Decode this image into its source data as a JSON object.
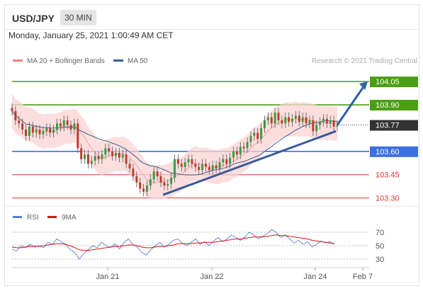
{
  "header": {
    "symbol": "USD/JPY",
    "timeframe": "30 MIN"
  },
  "datetime": "Monday, January 25, 2021 1:00:49 AM CET",
  "legend": {
    "ma20": {
      "label": "MA 20 + Bollinger Bands",
      "color": "#f08080"
    },
    "ma50": {
      "label": "MA 50",
      "color": "#3a5f95"
    }
  },
  "credit": "Research © 2021 Trading Central",
  "rsi_legend": {
    "rsi": {
      "label": "RSI",
      "color": "#5b7fd6"
    },
    "ma9": {
      "label": "9MA",
      "color": "#dd1111"
    }
  },
  "chart_data": [
    {
      "type": "candlestick",
      "symbol": "USD/JPY",
      "interval": "30 MIN",
      "x_ticks": [
        "Jan 21",
        "Jan 22",
        "Jan 24",
        "Feb 7"
      ],
      "levels": [
        {
          "value": 104.05,
          "label": "104.05",
          "color": "#4a9e12",
          "kind": "resistance"
        },
        {
          "value": 103.9,
          "label": "103.90",
          "color": "#4a9e12",
          "kind": "resistance"
        },
        {
          "value": 103.77,
          "label": "103.77",
          "color": "#333333",
          "kind": "last"
        },
        {
          "value": 103.6,
          "label": "103.60",
          "color": "#3c6fe0",
          "kind": "pivot"
        },
        {
          "value": 103.45,
          "label": "103.45",
          "color": "#e23232",
          "kind": "support"
        },
        {
          "value": 103.3,
          "label": "103.30",
          "color": "#e23232",
          "kind": "support"
        }
      ],
      "closes": [
        103.86,
        103.8,
        103.78,
        103.74,
        103.7,
        103.76,
        103.72,
        103.74,
        103.71,
        103.73,
        103.75,
        103.72,
        103.74,
        103.78,
        103.76,
        103.8,
        103.77,
        103.74,
        103.78,
        103.62,
        103.55,
        103.58,
        103.52,
        103.54,
        103.57,
        103.55,
        103.58,
        103.62,
        103.6,
        103.57,
        103.59,
        103.56,
        103.58,
        103.52,
        103.49,
        103.44,
        103.4,
        103.36,
        103.34,
        103.38,
        103.42,
        103.47,
        103.44,
        103.4,
        103.38,
        103.39,
        103.43,
        103.55,
        103.52,
        103.5,
        103.53,
        103.55,
        103.52,
        103.5,
        103.48,
        103.52,
        103.5,
        103.48,
        103.51,
        103.49,
        103.53,
        103.55,
        103.52,
        103.56,
        103.6,
        103.58,
        103.63,
        103.62,
        103.66,
        103.7,
        103.72,
        103.68,
        103.75,
        103.8,
        103.82,
        103.78,
        103.85,
        103.8,
        103.78,
        103.82,
        103.79,
        103.81,
        103.83,
        103.79,
        103.82,
        103.78,
        103.8,
        103.73,
        103.77,
        103.79,
        103.81,
        103.78,
        103.8,
        103.76,
        103.77
      ],
      "trendline": {
        "from": 103.32,
        "to": 103.73
      },
      "projection": {
        "from": 103.77,
        "to": 104.05
      },
      "ylim": [
        103.28,
        104.1
      ]
    },
    {
      "type": "line",
      "name": "RSI",
      "series": [
        {
          "name": "RSI",
          "color": "#5b7fd6",
          "values": [
            45,
            42,
            50,
            47,
            52,
            48,
            50,
            47,
            55,
            52,
            60,
            56,
            52,
            44,
            40,
            30,
            38,
            44,
            50,
            47,
            55,
            50,
            47,
            53,
            45,
            55,
            60,
            52,
            48,
            40,
            36,
            44,
            50,
            55,
            48,
            52,
            58,
            60,
            54,
            50,
            55,
            60,
            52,
            56,
            50,
            57,
            62,
            56,
            60,
            66,
            62,
            58,
            63,
            70,
            66,
            60,
            64,
            68,
            74,
            70,
            62,
            66,
            60,
            54,
            58,
            52,
            56,
            48,
            52,
            57,
            54,
            56,
            52
          ]
        },
        {
          "name": "9MA",
          "color": "#dd1111",
          "values": [
            48,
            47,
            47,
            48,
            49,
            49,
            49,
            50,
            51,
            52,
            53,
            53,
            52,
            50,
            47,
            44,
            43,
            43,
            44,
            45,
            46,
            47,
            48,
            49,
            49,
            50,
            51,
            51,
            50,
            48,
            47,
            47,
            48,
            49,
            49,
            50,
            51,
            53,
            53,
            53,
            53,
            54,
            54,
            55,
            55,
            55,
            56,
            57,
            58,
            59,
            60,
            60,
            61,
            62,
            63,
            63,
            63,
            64,
            65,
            66,
            65,
            65,
            64,
            63,
            62,
            61,
            60,
            58,
            57,
            56,
            55,
            54,
            53
          ]
        }
      ],
      "y_ticks": [
        70,
        50,
        30
      ],
      "ylim": [
        20,
        80
      ]
    }
  ]
}
